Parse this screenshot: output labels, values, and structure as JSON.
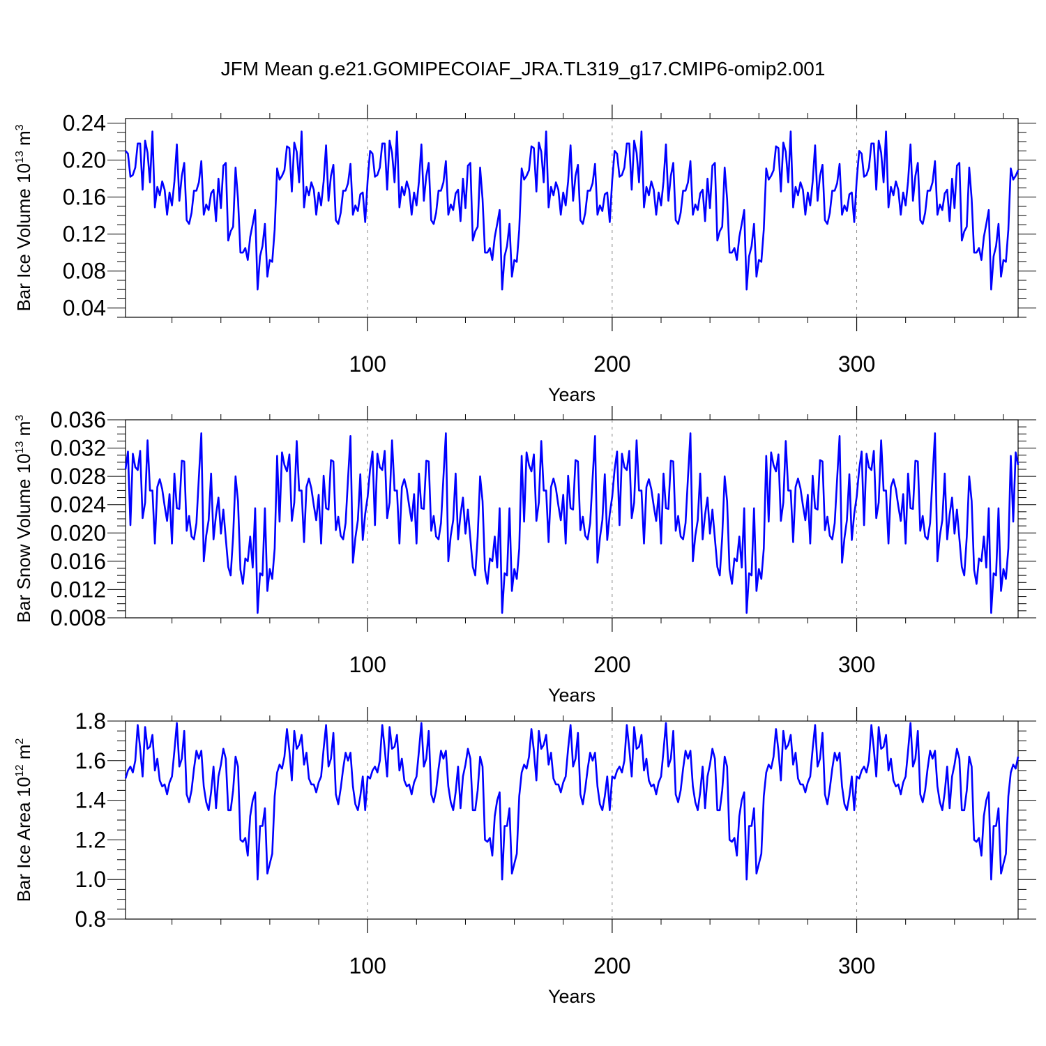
{
  "title": "JFM Mean g.e21.GOMIPECOIAF_JRA.TL319_g17.CMIP6-omip2.001",
  "series_color": "#0000ff",
  "chart_data": [
    {
      "type": "line",
      "ylabel": "Bar Ice Volume",
      "ylabel_unit_base": "10",
      "ylabel_unit_exp": "13",
      "ylabel_unit_sym": "m",
      "ylabel_unit_pow": "3",
      "xlabel": "Years",
      "xlim": [
        1,
        366
      ],
      "ylim": [
        0.03,
        0.245
      ],
      "xticks": [
        {
          "value": 100,
          "label": "100"
        },
        {
          "value": 200,
          "label": "200"
        },
        {
          "value": 300,
          "label": "300"
        }
      ],
      "yticks": [
        {
          "value": 0.04,
          "label": "0.04"
        },
        {
          "value": 0.08,
          "label": "0.08"
        },
        {
          "value": 0.12,
          "label": "0.12"
        },
        {
          "value": 0.16,
          "label": "0.16"
        },
        {
          "value": 0.2,
          "label": "0.20"
        },
        {
          "value": 0.24,
          "label": "0.24"
        }
      ],
      "grid": "vertical dashed at major x ticks",
      "base_values": [
        0.21,
        0.207,
        0.182,
        0.184,
        0.192,
        0.218,
        0.218,
        0.168,
        0.221,
        0.208,
        0.176,
        0.231,
        0.149,
        0.171,
        0.162,
        0.177,
        0.168,
        0.141,
        0.165,
        0.151,
        0.177,
        0.217,
        0.156,
        0.183,
        0.197,
        0.135,
        0.131,
        0.143,
        0.167,
        0.167,
        0.176,
        0.199,
        0.141,
        0.152,
        0.146,
        0.164,
        0.168,
        0.134,
        0.18,
        0.148,
        0.194,
        0.197,
        0.113,
        0.123,
        0.128,
        0.192,
        0.158,
        0.1,
        0.1,
        0.105,
        0.092,
        0.117,
        0.131,
        0.146,
        0.06,
        0.096,
        0.107,
        0.131,
        0.074,
        0.092,
        0.09,
        0.125,
        0.191,
        0.179,
        0.183,
        0.189,
        0.215,
        0.213,
        0.166,
        0.219,
        0.209,
        0.176,
        0.231,
        0.149,
        0.171,
        0.162,
        0.176,
        0.168,
        0.141,
        0.165,
        0.151,
        0.177,
        0.216,
        0.156,
        0.183,
        0.195,
        0.135,
        0.131,
        0.143,
        0.167,
        0.167,
        0.175,
        0.196,
        0.141,
        0.151,
        0.145,
        0.163,
        0.165,
        0.133,
        0.178
      ]
    },
    {
      "type": "line",
      "ylabel": "Bar Snow Volume",
      "ylabel_unit_base": "10",
      "ylabel_unit_exp": "13",
      "ylabel_unit_sym": "m",
      "ylabel_unit_pow": "3",
      "xlabel": "Years",
      "xlim": [
        1,
        366
      ],
      "ylim": [
        0.008,
        0.036
      ],
      "xticks": [
        {
          "value": 100,
          "label": "100"
        },
        {
          "value": 200,
          "label": "200"
        },
        {
          "value": 300,
          "label": "300"
        }
      ],
      "yticks": [
        {
          "value": 0.008,
          "label": "0.008"
        },
        {
          "value": 0.012,
          "label": "0.012"
        },
        {
          "value": 0.016,
          "label": "0.016"
        },
        {
          "value": 0.02,
          "label": "0.020"
        },
        {
          "value": 0.024,
          "label": "0.024"
        },
        {
          "value": 0.028,
          "label": "0.028"
        },
        {
          "value": 0.032,
          "label": "0.032"
        },
        {
          "value": 0.036,
          "label": "0.036"
        }
      ],
      "grid": "vertical dashed at major x ticks",
      "base_values": [
        0.029,
        0.0315,
        0.0211,
        0.0312,
        0.0293,
        0.0289,
        0.0316,
        0.0221,
        0.0243,
        0.0331,
        0.026,
        0.026,
        0.0185,
        0.0265,
        0.0276,
        0.0262,
        0.0238,
        0.0217,
        0.0255,
        0.0185,
        0.0284,
        0.0235,
        0.0234,
        0.0302,
        0.0301,
        0.0203,
        0.0224,
        0.0195,
        0.0191,
        0.0214,
        0.0279,
        0.0341,
        0.016,
        0.0196,
        0.0218,
        0.0284,
        0.0191,
        0.0226,
        0.025,
        0.0199,
        0.0233,
        0.0192,
        0.0152,
        0.014,
        0.0195,
        0.028,
        0.0245,
        0.0148,
        0.0128,
        0.0164,
        0.016,
        0.0195,
        0.0151,
        0.0235,
        0.0087,
        0.0143,
        0.014,
        0.0235,
        0.0118,
        0.0149,
        0.0135,
        0.0178,
        0.0309,
        0.0216,
        0.0314,
        0.0296,
        0.0287,
        0.0311,
        0.0217,
        0.0243,
        0.033,
        0.026,
        0.026,
        0.0187,
        0.0265,
        0.0277,
        0.0263,
        0.0239,
        0.0218,
        0.0254,
        0.0185,
        0.0281,
        0.0235,
        0.0233,
        0.0303,
        0.0301,
        0.0204,
        0.0223,
        0.0196,
        0.0191,
        0.0214,
        0.0277,
        0.0337,
        0.0158,
        0.0193,
        0.0218,
        0.0283,
        0.019,
        0.0227,
        0.0251
      ]
    },
    {
      "type": "line",
      "ylabel": "Bar Ice Area",
      "ylabel_unit_base": "10",
      "ylabel_unit_exp": "12",
      "ylabel_unit_sym": "m",
      "ylabel_unit_pow": "2",
      "xlabel": "Years",
      "xlim": [
        1,
        366
      ],
      "ylim": [
        0.8,
        1.8
      ],
      "xticks": [
        {
          "value": 100,
          "label": "100"
        },
        {
          "value": 200,
          "label": "200"
        },
        {
          "value": 300,
          "label": "300"
        }
      ],
      "yticks": [
        {
          "value": 0.8,
          "label": "0.8"
        },
        {
          "value": 1.0,
          "label": "1.0"
        },
        {
          "value": 1.2,
          "label": "1.2"
        },
        {
          "value": 1.4,
          "label": "1.4"
        },
        {
          "value": 1.6,
          "label": "1.6"
        },
        {
          "value": 1.8,
          "label": "1.8"
        }
      ],
      "grid": "vertical dashed at major x ticks",
      "base_values": [
        1.51,
        1.55,
        1.57,
        1.54,
        1.6,
        1.78,
        1.66,
        1.52,
        1.77,
        1.66,
        1.67,
        1.73,
        1.55,
        1.61,
        1.5,
        1.47,
        1.48,
        1.43,
        1.49,
        1.52,
        1.65,
        1.79,
        1.57,
        1.61,
        1.75,
        1.43,
        1.39,
        1.45,
        1.56,
        1.65,
        1.61,
        1.65,
        1.47,
        1.39,
        1.35,
        1.44,
        1.57,
        1.36,
        1.52,
        1.58,
        1.66,
        1.61,
        1.35,
        1.35,
        1.45,
        1.62,
        1.57,
        1.2,
        1.19,
        1.21,
        1.12,
        1.32,
        1.4,
        1.44,
        1.0,
        1.27,
        1.27,
        1.36,
        1.03,
        1.08,
        1.13,
        1.42,
        1.54,
        1.58,
        1.56,
        1.62,
        1.76,
        1.65,
        1.5,
        1.75,
        1.66,
        1.68,
        1.73,
        1.58,
        1.64,
        1.51,
        1.48,
        1.48,
        1.44,
        1.49,
        1.52,
        1.66,
        1.78,
        1.57,
        1.61,
        1.74,
        1.43,
        1.38,
        1.46,
        1.56,
        1.64,
        1.6,
        1.64,
        1.47,
        1.38,
        1.35,
        1.42,
        1.52,
        1.35,
        1.52
      ]
    }
  ]
}
